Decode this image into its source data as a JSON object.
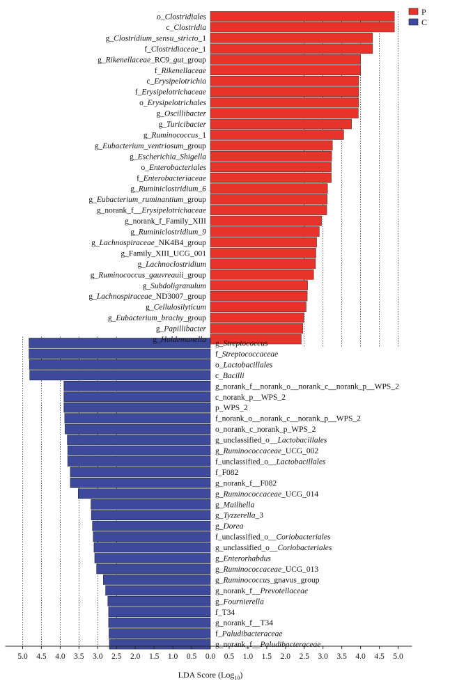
{
  "chart_data": {
    "type": "bar",
    "orientation": "horizontal",
    "xlabel_main": "LDA Score (Log",
    "xlabel_sub": "10",
    "xlabel_close": ")",
    "xlim": [
      -5.0,
      5.0
    ],
    "x_ticks": [
      "5.0",
      "4.5",
      "4.0",
      "3.5",
      "3.0",
      "2.5",
      "2.0",
      "1.5",
      "1.0",
      "0.5",
      "0.0",
      "0.5",
      "1.0",
      "1.5",
      "2.0",
      "2.5",
      "3.0",
      "3.5",
      "4.0",
      "4.5",
      "5.0"
    ],
    "grid": "dotted vertical lines at 2.5, 3.0, 3.5, 4.0, 4.5, 5.0 on both sides",
    "legend_position": "top-right",
    "colors": {
      "P": "#e8332b",
      "C": "#3d4a9b"
    },
    "series": [
      {
        "name": "P",
        "items": [
          {
            "label": [
              [
                "o_",
                0
              ],
              [
                "Clostridiales",
                1
              ]
            ],
            "value": 4.9
          },
          {
            "label": [
              [
                "c_",
                0
              ],
              [
                "Clostridia",
                1
              ]
            ],
            "value": 4.9
          },
          {
            "label": [
              [
                "g_",
                0
              ],
              [
                "Clostridium_sensu_stricto",
                1
              ],
              [
                "_1",
                0
              ]
            ],
            "value": 4.32
          },
          {
            "label": [
              [
                "f_",
                0
              ],
              [
                "Clostridiaceae",
                1
              ],
              [
                "_1",
                0
              ]
            ],
            "value": 4.32
          },
          {
            "label": [
              [
                "g_",
                0
              ],
              [
                "Rikenellaceae",
                1
              ],
              [
                "_RC9_",
                0
              ],
              [
                "gut",
                1
              ],
              [
                "_group",
                0
              ]
            ],
            "value": 4.0
          },
          {
            "label": [
              [
                "f_",
                0
              ],
              [
                "Rikenellaceae",
                1
              ]
            ],
            "value": 4.0
          },
          {
            "label": [
              [
                "c_",
                0
              ],
              [
                "Erysipelotrichia",
                1
              ]
            ],
            "value": 3.95
          },
          {
            "label": [
              [
                "f_",
                0
              ],
              [
                "Erysipelotrichaceae",
                1
              ]
            ],
            "value": 3.95
          },
          {
            "label": [
              [
                "o_",
                0
              ],
              [
                "Erysipelotrichales",
                1
              ]
            ],
            "value": 3.95
          },
          {
            "label": [
              [
                "g_",
                0
              ],
              [
                "Oscillibacter",
                1
              ]
            ],
            "value": 3.94
          },
          {
            "label": [
              [
                "g_",
                0
              ],
              [
                "Turicibacter",
                1
              ]
            ],
            "value": 3.76
          },
          {
            "label": [
              [
                "g_",
                0
              ],
              [
                "Ruminococcus",
                1
              ],
              [
                "_1",
                0
              ]
            ],
            "value": 3.55
          },
          {
            "label": [
              [
                "g_",
                0
              ],
              [
                "Eubacterium_ventriosum",
                1
              ],
              [
                "_group",
                0
              ]
            ],
            "value": 3.25
          },
          {
            "label": [
              [
                "g_",
                0
              ],
              [
                "Escherichia_Shigella",
                1
              ]
            ],
            "value": 3.23
          },
          {
            "label": [
              [
                "o_",
                0
              ],
              [
                "Enterobacteriales",
                1
              ]
            ],
            "value": 3.22
          },
          {
            "label": [
              [
                "f_",
                0
              ],
              [
                "Enterobacteriaceae",
                1
              ]
            ],
            "value": 3.22
          },
          {
            "label": [
              [
                "g_",
                0
              ],
              [
                "Ruminiclostridium_6",
                1
              ]
            ],
            "value": 3.12
          },
          {
            "label": [
              [
                "g_",
                0
              ],
              [
                "Eubacterium_ruminantium",
                1
              ],
              [
                "_group",
                0
              ]
            ],
            "value": 3.11
          },
          {
            "label": [
              [
                "g_norank_f__",
                0
              ],
              [
                "Erysipelotrichaceae",
                1
              ]
            ],
            "value": 3.1
          },
          {
            "label": [
              [
                "g_norank_f_Family_XIII",
                0
              ]
            ],
            "value": 2.96
          },
          {
            "label": [
              [
                "g_",
                0
              ],
              [
                "Ruminiclostridium_9",
                1
              ]
            ],
            "value": 2.9
          },
          {
            "label": [
              [
                "g_",
                0
              ],
              [
                "Lachnospiraceae",
                1
              ],
              [
                "_NK4B4_group",
                0
              ]
            ],
            "value": 2.83
          },
          {
            "label": [
              [
                "g_Family_XIII_UCG_001",
                0
              ]
            ],
            "value": 2.81
          },
          {
            "label": [
              [
                "g_",
                0
              ],
              [
                "Lachnoclostridium",
                1
              ]
            ],
            "value": 2.8
          },
          {
            "label": [
              [
                "g_",
                0
              ],
              [
                "Ruminococcus_gauvreauii",
                1
              ],
              [
                "_group",
                0
              ]
            ],
            "value": 2.75
          },
          {
            "label": [
              [
                "g_",
                0
              ],
              [
                "Subdoligranulum",
                1
              ]
            ],
            "value": 2.59
          },
          {
            "label": [
              [
                "g_",
                0
              ],
              [
                "Lachnospiraceae",
                1
              ],
              [
                "_ND3007_group",
                0
              ]
            ],
            "value": 2.58
          },
          {
            "label": [
              [
                "g_",
                0
              ],
              [
                "Cellulosilyticum",
                1
              ]
            ],
            "value": 2.55
          },
          {
            "label": [
              [
                "g_",
                0
              ],
              [
                "Eubacterium_brachy",
                1
              ],
              [
                "_group",
                0
              ]
            ],
            "value": 2.49
          },
          {
            "label": [
              [
                "g_",
                0
              ],
              [
                "Papillibacter",
                1
              ]
            ],
            "value": 2.46
          },
          {
            "label": [
              [
                "g_",
                0
              ],
              [
                "Holdemanella",
                1
              ]
            ],
            "value": 2.42
          }
        ]
      },
      {
        "name": "C",
        "items": [
          {
            "label": [
              [
                "g_",
                0
              ],
              [
                "Streptococcus",
                1
              ]
            ],
            "value": 4.83
          },
          {
            "label": [
              [
                "f_",
                0
              ],
              [
                "Streptococcaceae",
                1
              ]
            ],
            "value": 4.83
          },
          {
            "label": [
              [
                "o_",
                0
              ],
              [
                "Lactobacillales",
                1
              ]
            ],
            "value": 4.82
          },
          {
            "label": [
              [
                "c_",
                0
              ],
              [
                "Bacilli",
                1
              ]
            ],
            "value": 4.81
          },
          {
            "label": [
              [
                "g_norank_f__norank_o__norank_c__norank_p__WPS_2",
                0
              ]
            ],
            "value": 3.9
          },
          {
            "label": [
              [
                "c_norank_p__WPS_2",
                0
              ]
            ],
            "value": 3.9
          },
          {
            "label": [
              [
                "p_WPS_2",
                0
              ]
            ],
            "value": 3.9
          },
          {
            "label": [
              [
                "f_norank_o__norank_c__norank_p__WPS_2",
                0
              ]
            ],
            "value": 3.88
          },
          {
            "label": [
              [
                "o_norank_c_norank_p_WPS_2",
                0
              ]
            ],
            "value": 3.87
          },
          {
            "label": [
              [
                "g_unclassified_o__",
                0
              ],
              [
                "Lactobacillales",
                1
              ]
            ],
            "value": 3.81
          },
          {
            "label": [
              [
                "g_",
                0
              ],
              [
                "Ruminococcaceae",
                1
              ],
              [
                "_UCG_002",
                0
              ]
            ],
            "value": 3.8
          },
          {
            "label": [
              [
                "f_unclassified_o__",
                0
              ],
              [
                "Lactobacillales",
                1
              ]
            ],
            "value": 3.8
          },
          {
            "label": [
              [
                "f_F082",
                0
              ]
            ],
            "value": 3.73
          },
          {
            "label": [
              [
                "g_norank_f__F082",
                0
              ]
            ],
            "value": 3.73
          },
          {
            "label": [
              [
                "g_",
                0
              ],
              [
                "Ruminococcaceae",
                1
              ],
              [
                "_UCG_014",
                0
              ]
            ],
            "value": 3.52
          },
          {
            "label": [
              [
                "g_",
                0
              ],
              [
                "Mailhella",
                1
              ]
            ],
            "value": 3.18
          },
          {
            "label": [
              [
                "g_",
                0
              ],
              [
                "Tyzzerella",
                1
              ],
              [
                "_3",
                0
              ]
            ],
            "value": 3.17
          },
          {
            "label": [
              [
                "g_",
                0
              ],
              [
                "Dorea",
                1
              ]
            ],
            "value": 3.14
          },
          {
            "label": [
              [
                "f_unclassified_o__",
                0
              ],
              [
                "Coriobacteriales",
                1
              ]
            ],
            "value": 3.12
          },
          {
            "label": [
              [
                "g_unclassified_o__",
                0
              ],
              [
                "Coriobacteriales",
                1
              ]
            ],
            "value": 3.1
          },
          {
            "label": [
              [
                "g_",
                0
              ],
              [
                "Enterorhabdus",
                1
              ]
            ],
            "value": 3.08
          },
          {
            "label": [
              [
                "g_",
                0
              ],
              [
                "Ruminococcaceae",
                1
              ],
              [
                "_UCG_013",
                0
              ]
            ],
            "value": 3.03
          },
          {
            "label": [
              [
                "g_",
                0
              ],
              [
                "Ruminococcus",
                1
              ],
              [
                "_gnavus_group",
                0
              ]
            ],
            "value": 2.85
          },
          {
            "label": [
              [
                "g_norank_f__",
                0
              ],
              [
                "Prevotellaceae",
                1
              ]
            ],
            "value": 2.79
          },
          {
            "label": [
              [
                "g_",
                0
              ],
              [
                "Fournierella",
                1
              ]
            ],
            "value": 2.73
          },
          {
            "label": [
              [
                "f_T34",
                0
              ]
            ],
            "value": 2.71
          },
          {
            "label": [
              [
                "g_norank_f__T34",
                0
              ]
            ],
            "value": 2.71
          },
          {
            "label": [
              [
                "f_",
                0
              ],
              [
                "Paludibacteraceae",
                1
              ]
            ],
            "value": 2.7
          },
          {
            "label": [
              [
                "g_norank_f__",
                0
              ],
              [
                "Paludibacteraceae",
                1
              ]
            ],
            "value": 2.69
          }
        ]
      }
    ]
  }
}
